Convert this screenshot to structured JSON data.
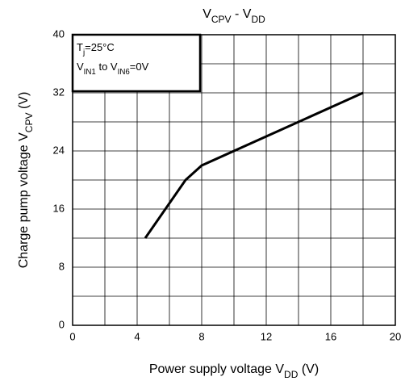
{
  "chart_data": {
    "type": "line",
    "title": {
      "parts": [
        "V",
        "CPV",
        " - V",
        "DD"
      ],
      "sub": [
        1,
        3
      ]
    },
    "x_label": {
      "parts": [
        "Power supply voltage   V",
        "DD",
        "   (V)"
      ],
      "sub": [
        1
      ]
    },
    "y_label": {
      "parts": [
        "Charge pump voltage V",
        "CPV",
        "    (V)"
      ],
      "sub": [
        1
      ]
    },
    "legend_lines": [
      {
        "parts": [
          "T",
          "j",
          "=25°C"
        ],
        "sub": [
          1
        ]
      },
      {
        "parts": [
          "V",
          "IN1",
          " to V",
          "IN6",
          "=0V"
        ],
        "sub": [
          1,
          3
        ]
      }
    ],
    "legend_position": "upper left",
    "xlim": [
      0,
      20
    ],
    "xticks": [
      0,
      4,
      8,
      12,
      16,
      20
    ],
    "xminor": [
      2,
      6,
      10,
      14,
      18
    ],
    "ylim": [
      0,
      40
    ],
    "yticks": [
      0,
      8,
      16,
      24,
      32,
      40
    ],
    "yminor": [
      4,
      12,
      20,
      28,
      36
    ],
    "grid": true,
    "series": [
      {
        "color": "#000000",
        "x": [
          4.5,
          7,
          8,
          18
        ],
        "values": [
          12,
          20,
          22,
          32
        ]
      }
    ]
  }
}
